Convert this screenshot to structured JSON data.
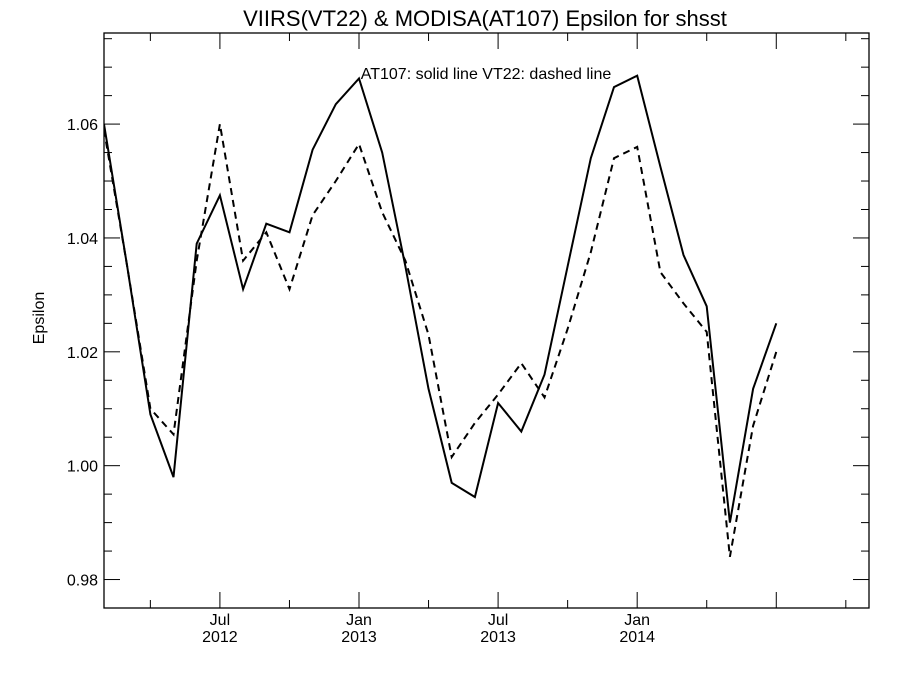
{
  "chart_data": {
    "type": "line",
    "title": "VIIRS(VT22) & MODISA(AT107)  Epsilon for shsst",
    "annotation": "AT107: solid line   VT22: dashed line",
    "ylabel": "Epsilon",
    "xlabel": "",
    "ylim": [
      0.975,
      1.076
    ],
    "xlim": [
      "2012-02-01",
      "2014-11-01"
    ],
    "y_ticks": [
      {
        "value": 0.98,
        "label": "0.98"
      },
      {
        "value": 1.0,
        "label": "1.00"
      },
      {
        "value": 1.02,
        "label": "1.02"
      },
      {
        "value": 1.04,
        "label": "1.04"
      },
      {
        "value": 1.06,
        "label": "1.06"
      }
    ],
    "x_ticks": [
      {
        "date": "2012-07-01",
        "month": "Jul",
        "year": "2012"
      },
      {
        "date": "2013-01-01",
        "month": "Jan",
        "year": "2013"
      },
      {
        "date": "2013-07-01",
        "month": "Jul",
        "year": "2013"
      },
      {
        "date": "2014-01-01",
        "month": "Jan",
        "year": "2014"
      }
    ],
    "x": [
      "2012-02-01",
      "2012-03-01",
      "2012-04-01",
      "2012-05-01",
      "2012-06-01",
      "2012-07-01",
      "2012-08-01",
      "2012-09-01",
      "2012-10-01",
      "2012-11-01",
      "2012-12-01",
      "2013-01-01",
      "2013-02-01",
      "2013-03-01",
      "2013-04-01",
      "2013-05-01",
      "2013-06-01",
      "2013-07-01",
      "2013-08-01",
      "2013-09-01",
      "2013-10-01",
      "2013-11-01",
      "2013-12-01",
      "2014-01-01",
      "2014-02-01",
      "2014-03-01",
      "2014-04-01",
      "2014-05-01",
      "2014-06-01",
      "2014-07-01"
    ],
    "series": [
      {
        "name": "AT107",
        "style": "solid",
        "color": "#000000",
        "values": [
          1.06,
          1.035,
          1.009,
          0.998,
          1.039,
          1.0475,
          1.031,
          1.0425,
          1.041,
          1.0555,
          1.0635,
          1.068,
          1.055,
          1.035,
          1.0135,
          0.997,
          0.9945,
          1.011,
          1.006,
          1.016,
          1.035,
          1.054,
          1.0665,
          1.0685,
          1.0525,
          1.037,
          1.028,
          0.99,
          1.0135,
          1.025
        ]
      },
      {
        "name": "VT22",
        "style": "dashed",
        "color": "#000000",
        "values": [
          1.059,
          1.035,
          1.01,
          1.0055,
          1.036,
          1.06,
          1.036,
          1.041,
          1.031,
          1.044,
          1.05,
          1.0565,
          1.0445,
          1.036,
          1.023,
          1.0015,
          1.0075,
          1.0125,
          1.018,
          1.012,
          1.024,
          1.0375,
          1.054,
          1.056,
          1.034,
          1.0285,
          1.0235,
          0.984,
          1.007,
          1.02
        ]
      }
    ],
    "grid": false,
    "legend": "none"
  }
}
